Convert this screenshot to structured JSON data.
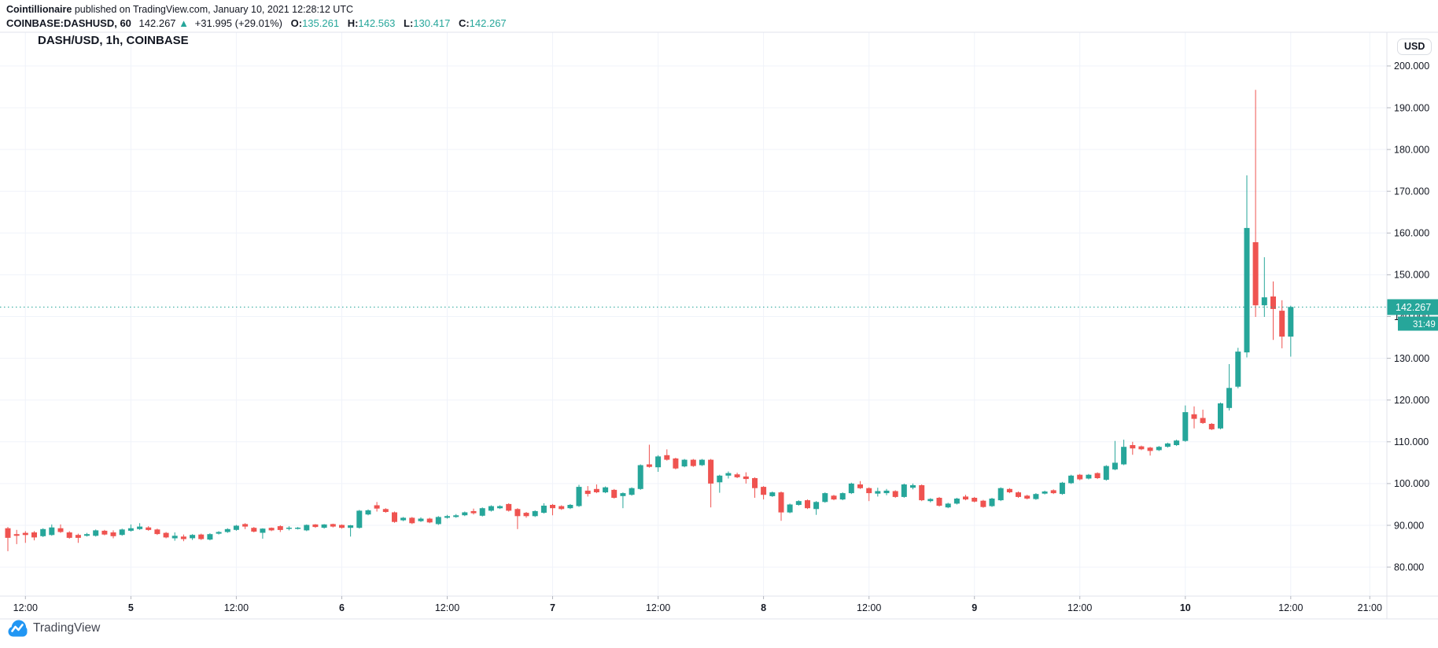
{
  "header": {
    "author": "Cointillionaire",
    "published_text": " published on TradingView.com, January 10, 2021 12:28:12 UTC",
    "symbol_text": "COINBASE:DASHUSD, 60",
    "last_price": "142.267",
    "change_arrow": "▲",
    "change_text": "+31.995 (+29.01%)",
    "ohlc": {
      "o_label": "O:",
      "o_value": "135.261",
      "h_label": "H:",
      "h_value": "142.563",
      "l_label": "L:",
      "l_value": "130.417",
      "c_label": "C:",
      "c_value": "142.267"
    }
  },
  "chart": {
    "title": "DASH/USD, 1h, COINBASE",
    "currency_button": "USD",
    "price_line": {
      "value": 142.267,
      "label": "142.267",
      "countdown": "31:49"
    },
    "colors": {
      "up": "#26a69a",
      "down": "#ef5350",
      "grid": "#f0f3fa",
      "border": "#e0e3eb",
      "tick": "#b2b5be",
      "axis_text": "#131722",
      "tag_bg": "#26a69a",
      "tag_text": "#ffffff",
      "logo_blue": "#2196f3"
    }
  },
  "footer": {
    "logo_text": "TradingView"
  },
  "chart_data": {
    "type": "candlestick",
    "symbol": "DASH/USD",
    "interval": "1h",
    "exchange": "COINBASE",
    "price_axis": {
      "min": 80,
      "max": 200,
      "step": 10,
      "decimals": 3
    },
    "time_labels": [
      {
        "label": "12:00",
        "index": 2,
        "day": false
      },
      {
        "label": "5",
        "index": 14,
        "day": true
      },
      {
        "label": "12:00",
        "index": 26,
        "day": false
      },
      {
        "label": "6",
        "index": 38,
        "day": true
      },
      {
        "label": "12:00",
        "index": 50,
        "day": false
      },
      {
        "label": "7",
        "index": 62,
        "day": true
      },
      {
        "label": "12:00",
        "index": 74,
        "day": false
      },
      {
        "label": "8",
        "index": 86,
        "day": true
      },
      {
        "label": "12:00",
        "index": 98,
        "day": false
      },
      {
        "label": "9",
        "index": 110,
        "day": true
      },
      {
        "label": "12:00",
        "index": 122,
        "day": false
      },
      {
        "label": "10",
        "index": 134,
        "day": true
      },
      {
        "label": "12:00",
        "index": 146,
        "day": false
      },
      {
        "label": "21:00",
        "index": 155,
        "day": false
      }
    ],
    "candles_ohlc": [
      [
        89.3,
        89.6,
        83.8,
        87.0
      ],
      [
        87.9,
        88.9,
        85.5,
        87.5
      ],
      [
        88.2,
        88.6,
        85.8,
        87.7
      ],
      [
        88.3,
        88.6,
        86.4,
        87.1
      ],
      [
        87.4,
        89.3,
        87.2,
        89.1
      ],
      [
        87.7,
        90.2,
        87.5,
        89.5
      ],
      [
        89.3,
        90.2,
        88.2,
        88.4
      ],
      [
        88.3,
        88.6,
        86.8,
        87.0
      ],
      [
        87.7,
        88.0,
        85.8,
        87.0
      ],
      [
        87.5,
        88.2,
        87.3,
        87.9
      ],
      [
        87.5,
        89.0,
        87.3,
        88.8
      ],
      [
        88.7,
        88.9,
        87.6,
        87.8
      ],
      [
        88.3,
        88.8,
        86.9,
        87.4
      ],
      [
        87.7,
        89.2,
        87.5,
        89.0
      ],
      [
        88.7,
        90.2,
        88.5,
        89.3
      ],
      [
        89.1,
        90.5,
        88.9,
        89.7
      ],
      [
        89.5,
        89.8,
        88.7,
        88.9
      ],
      [
        89.0,
        89.2,
        87.7,
        87.9
      ],
      [
        88.2,
        88.4,
        86.9,
        87.1
      ],
      [
        86.9,
        88.3,
        86.3,
        87.5
      ],
      [
        87.3,
        87.8,
        86.2,
        86.7
      ],
      [
        86.9,
        87.9,
        86.5,
        87.7
      ],
      [
        87.8,
        88.0,
        86.5,
        86.7
      ],
      [
        86.6,
        88.1,
        86.4,
        87.9
      ],
      [
        88.0,
        88.6,
        87.8,
        88.4
      ],
      [
        88.4,
        89.3,
        88.2,
        89.1
      ],
      [
        88.9,
        90.1,
        88.7,
        89.9
      ],
      [
        90.3,
        90.5,
        89.1,
        89.7
      ],
      [
        89.4,
        89.6,
        88.3,
        88.5
      ],
      [
        88.2,
        89.3,
        86.8,
        89.2
      ],
      [
        89.4,
        89.5,
        88.6,
        88.8
      ],
      [
        89.8,
        90.0,
        88.4,
        88.9
      ],
      [
        89.2,
        89.8,
        88.8,
        89.4
      ],
      [
        89.2,
        89.6,
        89.0,
        89.4
      ],
      [
        88.8,
        90.2,
        88.6,
        90.1
      ],
      [
        90.2,
        90.3,
        89.4,
        89.6
      ],
      [
        89.4,
        90.3,
        89.2,
        90.2
      ],
      [
        90.3,
        90.4,
        89.5,
        89.7
      ],
      [
        90.1,
        90.2,
        89.2,
        89.4
      ],
      [
        89.4,
        90.1,
        87.3,
        90.0
      ],
      [
        89.4,
        93.7,
        89.2,
        93.5
      ],
      [
        92.6,
        93.8,
        92.4,
        93.6
      ],
      [
        94.8,
        95.6,
        93.3,
        94.0
      ],
      [
        93.9,
        94.1,
        93.0,
        93.2
      ],
      [
        93.1,
        93.3,
        90.6,
        90.8
      ],
      [
        91.2,
        92.0,
        91.0,
        91.8
      ],
      [
        91.8,
        92.0,
        90.3,
        90.5
      ],
      [
        91.0,
        91.9,
        90.8,
        91.6
      ],
      [
        91.6,
        91.8,
        90.5,
        90.7
      ],
      [
        90.3,
        92.2,
        90.1,
        92.0
      ],
      [
        91.8,
        92.5,
        91.6,
        92.2
      ],
      [
        92.0,
        92.7,
        91.8,
        92.4
      ],
      [
        92.4,
        93.3,
        92.2,
        93.1
      ],
      [
        93.4,
        94.0,
        92.6,
        92.9
      ],
      [
        92.3,
        94.3,
        92.1,
        94.1
      ],
      [
        93.5,
        94.8,
        93.3,
        94.6
      ],
      [
        94.1,
        94.8,
        93.9,
        94.6
      ],
      [
        95.1,
        95.3,
        93.3,
        93.5
      ],
      [
        93.9,
        94.1,
        89.1,
        92.2
      ],
      [
        93.0,
        93.2,
        91.8,
        92.2
      ],
      [
        92.2,
        93.6,
        92.0,
        93.4
      ],
      [
        93.0,
        95.3,
        92.8,
        94.7
      ],
      [
        94.9,
        95.1,
        92.4,
        94.1
      ],
      [
        94.6,
        94.8,
        93.7,
        93.9
      ],
      [
        94.1,
        95.1,
        93.9,
        94.9
      ],
      [
        94.6,
        99.7,
        94.4,
        99.2
      ],
      [
        98.3,
        99.4,
        96.9,
        97.5
      ],
      [
        98.7,
        99.8,
        97.7,
        97.9
      ],
      [
        97.9,
        99.3,
        97.7,
        99.1
      ],
      [
        98.5,
        98.7,
        96.4,
        96.6
      ],
      [
        97.0,
        97.9,
        94.1,
        97.7
      ],
      [
        97.3,
        99.1,
        97.1,
        98.9
      ],
      [
        98.7,
        104.6,
        98.5,
        104.4
      ],
      [
        104.6,
        109.3,
        103.8,
        104.0
      ],
      [
        103.9,
        106.8,
        102.8,
        106.5
      ],
      [
        106.8,
        108.2,
        105.5,
        105.7
      ],
      [
        106.0,
        106.2,
        103.4,
        103.6
      ],
      [
        104.1,
        105.9,
        103.9,
        105.7
      ],
      [
        105.7,
        105.9,
        104.0,
        104.2
      ],
      [
        104.4,
        105.9,
        104.2,
        105.7
      ],
      [
        105.7,
        105.9,
        94.3,
        100.0
      ],
      [
        100.3,
        102.1,
        97.8,
        101.9
      ],
      [
        101.9,
        102.9,
        101.2,
        102.5
      ],
      [
        102.2,
        102.6,
        101.3,
        101.5
      ],
      [
        101.7,
        102.7,
        100.0,
        101.1
      ],
      [
        101.3,
        101.5,
        96.6,
        98.9
      ],
      [
        99.2,
        99.4,
        96.2,
        97.3
      ],
      [
        97.0,
        98.1,
        96.8,
        97.9
      ],
      [
        97.9,
        98.1,
        91.1,
        93.1
      ],
      [
        93.1,
        95.2,
        92.9,
        95.0
      ],
      [
        94.9,
        96.0,
        94.7,
        95.8
      ],
      [
        96.0,
        96.2,
        93.9,
        94.1
      ],
      [
        93.9,
        95.8,
        92.5,
        95.6
      ],
      [
        95.6,
        97.9,
        95.4,
        97.7
      ],
      [
        97.1,
        97.3,
        96.0,
        96.2
      ],
      [
        96.2,
        97.9,
        96.0,
        97.7
      ],
      [
        97.7,
        100.2,
        97.5,
        100.0
      ],
      [
        99.8,
        100.6,
        98.7,
        98.9
      ],
      [
        98.9,
        99.1,
        95.8,
        97.7
      ],
      [
        97.6,
        99.0,
        96.9,
        98.2
      ],
      [
        97.7,
        98.7,
        97.2,
        98.3
      ],
      [
        98.2,
        98.4,
        96.6,
        96.8
      ],
      [
        96.8,
        100.0,
        96.6,
        99.8
      ],
      [
        99.0,
        100.0,
        98.6,
        99.6
      ],
      [
        99.6,
        99.8,
        95.8,
        96.0
      ],
      [
        95.8,
        96.5,
        95.5,
        96.3
      ],
      [
        96.6,
        96.8,
        94.5,
        94.7
      ],
      [
        94.3,
        95.4,
        94.1,
        95.2
      ],
      [
        95.2,
        96.6,
        95.0,
        96.4
      ],
      [
        96.9,
        97.3,
        96.0,
        96.2
      ],
      [
        96.6,
        96.8,
        95.5,
        95.7
      ],
      [
        95.9,
        96.1,
        94.2,
        94.4
      ],
      [
        94.6,
        96.6,
        94.4,
        96.4
      ],
      [
        96.0,
        99.1,
        95.8,
        98.9
      ],
      [
        98.7,
        98.9,
        97.7,
        97.9
      ],
      [
        97.9,
        98.1,
        96.6,
        96.8
      ],
      [
        97.1,
        97.3,
        96.2,
        96.4
      ],
      [
        96.3,
        97.7,
        96.1,
        97.5
      ],
      [
        97.6,
        98.3,
        97.4,
        98.1
      ],
      [
        98.4,
        98.6,
        97.5,
        97.7
      ],
      [
        97.5,
        100.4,
        97.3,
        100.2
      ],
      [
        100.1,
        102.1,
        99.9,
        101.9
      ],
      [
        102.1,
        102.3,
        100.8,
        101.0
      ],
      [
        101.2,
        102.3,
        101.0,
        102.1
      ],
      [
        102.5,
        102.7,
        101.1,
        101.3
      ],
      [
        100.9,
        104.4,
        100.7,
        104.2
      ],
      [
        103.4,
        110.2,
        103.2,
        105.0
      ],
      [
        104.6,
        110.5,
        104.4,
        108.8
      ],
      [
        109.2,
        110.0,
        106.9,
        108.4
      ],
      [
        108.9,
        109.1,
        108.0,
        108.2
      ],
      [
        108.6,
        108.8,
        106.7,
        107.8
      ],
      [
        108.0,
        109.0,
        107.8,
        108.8
      ],
      [
        108.8,
        109.8,
        108.6,
        109.6
      ],
      [
        109.2,
        110.5,
        109.0,
        110.3
      ],
      [
        110.2,
        118.7,
        110.0,
        117.1
      ],
      [
        116.6,
        118.5,
        113.2,
        115.5
      ],
      [
        115.7,
        117.7,
        114.3,
        114.5
      ],
      [
        114.3,
        114.5,
        112.8,
        113.0
      ],
      [
        113.2,
        119.4,
        113.0,
        119.2
      ],
      [
        118.1,
        128.6,
        117.5,
        122.9
      ],
      [
        123.2,
        132.5,
        122.8,
        131.6
      ],
      [
        131.4,
        173.8,
        130.2,
        161.2
      ],
      [
        157.8,
        194.3,
        139.9,
        142.7
      ],
      [
        142.7,
        154.2,
        139.9,
        144.6
      ],
      [
        144.8,
        148.4,
        134.4,
        141.8
      ],
      [
        141.4,
        143.9,
        132.4,
        135.2
      ],
      [
        135.2,
        142.6,
        130.4,
        142.3
      ]
    ]
  }
}
